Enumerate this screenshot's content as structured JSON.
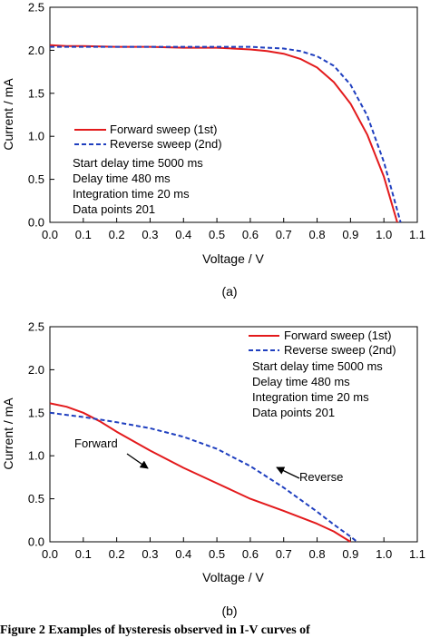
{
  "chart_data": [
    {
      "type": "line",
      "panel_label": "(a)",
      "xlabel": "Voltage / V",
      "ylabel": "Current / mA",
      "xlim": [
        0,
        1.1
      ],
      "ylim": [
        0,
        2.5
      ],
      "x_ticks": [
        "0.0",
        "0.1",
        "0.2",
        "0.3",
        "0.4",
        "0.5",
        "0.6",
        "0.7",
        "0.8",
        "0.9",
        "1.0",
        "1.1"
      ],
      "y_ticks": [
        "0.0",
        "0.5",
        "1.0",
        "1.5",
        "2.0",
        "2.5"
      ],
      "grid": false,
      "legend_position": "lower-left",
      "series": [
        {
          "name": "Forward sweep (1st)",
          "color": "#e31a1c",
          "line_style": "solid",
          "x": [
            0,
            0.05,
            0.1,
            0.2,
            0.3,
            0.4,
            0.5,
            0.6,
            0.65,
            0.7,
            0.75,
            0.8,
            0.85,
            0.9,
            0.95,
            1.0,
            1.04
          ],
          "y": [
            2.06,
            2.05,
            2.05,
            2.04,
            2.04,
            2.03,
            2.03,
            2.01,
            1.99,
            1.96,
            1.9,
            1.8,
            1.63,
            1.38,
            1.02,
            0.53,
            0.0
          ]
        },
        {
          "name": "Reverse sweep (2nd)",
          "color": "#1f3fbf",
          "line_style": "dashed",
          "x": [
            0,
            0.1,
            0.2,
            0.3,
            0.4,
            0.5,
            0.6,
            0.65,
            0.7,
            0.75,
            0.8,
            0.85,
            0.9,
            0.95,
            1.0,
            1.05
          ],
          "y": [
            2.04,
            2.04,
            2.04,
            2.04,
            2.04,
            2.04,
            2.04,
            2.03,
            2.02,
            1.99,
            1.93,
            1.82,
            1.6,
            1.24,
            0.7,
            0.0
          ]
        }
      ],
      "annotations": [
        "Start delay time 5000 ms",
        "Delay time 480 ms",
        "Integration time 20 ms",
        "Data points 201"
      ]
    },
    {
      "type": "line",
      "panel_label": "(b)",
      "xlabel": "Voltage / V",
      "ylabel": "Current / mA",
      "xlim": [
        0,
        1.1
      ],
      "ylim": [
        0,
        2.5
      ],
      "x_ticks": [
        "0.0",
        "0.1",
        "0.2",
        "0.3",
        "0.4",
        "0.5",
        "0.6",
        "0.7",
        "0.8",
        "0.9",
        "1.0",
        "1.1"
      ],
      "y_ticks": [
        "0.0",
        "0.5",
        "1.0",
        "1.5",
        "2.0",
        "2.5"
      ],
      "grid": false,
      "legend_position": "top-right",
      "series": [
        {
          "name": "Forward sweep (1st)",
          "color": "#e31a1c",
          "line_style": "solid",
          "x": [
            0,
            0.05,
            0.1,
            0.15,
            0.2,
            0.3,
            0.4,
            0.5,
            0.6,
            0.7,
            0.8,
            0.85,
            0.9
          ],
          "y": [
            1.61,
            1.57,
            1.5,
            1.4,
            1.28,
            1.06,
            0.86,
            0.68,
            0.5,
            0.36,
            0.21,
            0.12,
            0.0
          ]
        },
        {
          "name": "Reverse sweep (2nd)",
          "color": "#1f3fbf",
          "line_style": "dashed",
          "x": [
            0,
            0.1,
            0.2,
            0.3,
            0.4,
            0.5,
            0.6,
            0.7,
            0.8,
            0.85,
            0.9,
            0.92
          ],
          "y": [
            1.5,
            1.45,
            1.39,
            1.32,
            1.22,
            1.08,
            0.88,
            0.63,
            0.35,
            0.2,
            0.06,
            0.0
          ]
        }
      ],
      "annotations": [
        "Start delay time 5000 ms",
        "Delay time 480 ms",
        "Integration time 20 ms",
        "Data points 201"
      ],
      "arrow_labels": [
        "Forward",
        "Reverse"
      ]
    }
  ],
  "caption": "Figure 2    Examples of hysteresis observed in I-V curves of"
}
